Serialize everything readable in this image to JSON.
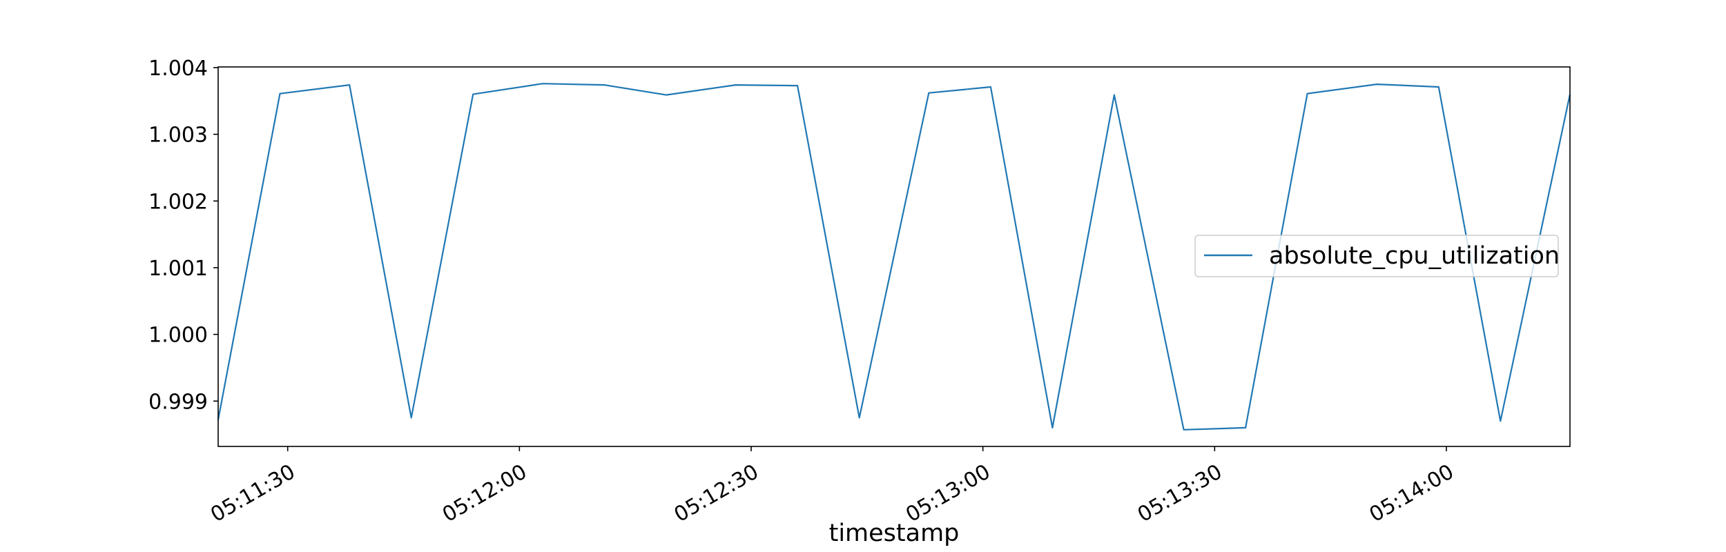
{
  "chart_data": {
    "type": "line",
    "title": "",
    "xlabel": "timestamp",
    "ylabel": "",
    "x_tick_labels": [
      "05:11:30",
      "05:12:00",
      "05:12:30",
      "05:13:00",
      "05:13:30",
      "05:14:00"
    ],
    "y_tick_labels": [
      "0.999",
      "1.000",
      "1.001",
      "1.002",
      "1.003",
      "1.004"
    ],
    "ylim": [
      0.99832,
      1.00401
    ],
    "xlim": [
      "05:11:21",
      "05:14:16"
    ],
    "grid": false,
    "legend_position": "center-right",
    "series": [
      {
        "name": "absolute_cpu_utilization",
        "color": "#1f77b4",
        "points": [
          {
            "x": "05:11:21",
            "y": 0.99872
          },
          {
            "x": "05:11:29",
            "y": 1.00361
          },
          {
            "x": "05:11:38",
            "y": 1.00374
          },
          {
            "x": "05:11:46",
            "y": 0.99875
          },
          {
            "x": "05:11:54",
            "y": 1.0036
          },
          {
            "x": "05:12:03",
            "y": 1.00376
          },
          {
            "x": "05:12:11",
            "y": 1.00374
          },
          {
            "x": "05:12:19",
            "y": 1.00359
          },
          {
            "x": "05:12:28",
            "y": 1.00374
          },
          {
            "x": "05:12:36",
            "y": 1.00373
          },
          {
            "x": "05:12:44",
            "y": 0.99875
          },
          {
            "x": "05:12:53",
            "y": 1.00362
          },
          {
            "x": "05:13:01",
            "y": 1.00371
          },
          {
            "x": "05:13:09",
            "y": 0.9986
          },
          {
            "x": "05:13:17",
            "y": 1.00359
          },
          {
            "x": "05:13:26",
            "y": 0.99857
          },
          {
            "x": "05:13:34",
            "y": 0.9986
          },
          {
            "x": "05:13:42",
            "y": 1.00361
          },
          {
            "x": "05:13:51",
            "y": 1.00375
          },
          {
            "x": "05:13:59",
            "y": 1.00371
          },
          {
            "x": "05:14:07",
            "y": 0.9987
          },
          {
            "x": "05:14:16",
            "y": 1.0036
          }
        ]
      }
    ]
  }
}
